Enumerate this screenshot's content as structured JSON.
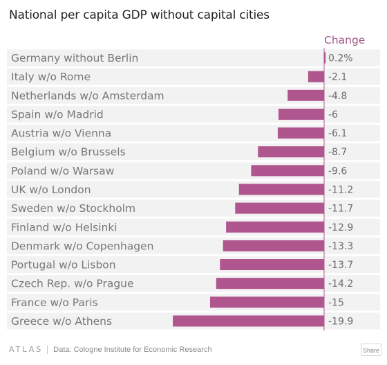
{
  "title": "National per capita GDP without capital cities",
  "footer": {
    "brand": "ATLAS",
    "source": "Data: Cologne Institute for Economic Research",
    "share_label": "Share"
  },
  "colors": {
    "bar": "#b0568f",
    "header": "#a3588a",
    "row_background": "#f2f2f2"
  },
  "chart_data": {
    "type": "bar",
    "orientation": "horizontal",
    "title": "National per capita GDP without capital cities",
    "value_header": "Change",
    "categories": [
      "Germany without Berlin",
      "Italy w/o Rome",
      "Netherlands w/o Amsterdam",
      "Spain w/o Madrid",
      "Austria w/o Vienna",
      "Belgium w/o Brussels",
      "Poland w/o Warsaw",
      "UK w/o London",
      "Sweden w/o Stockholm",
      "Finland w/o Helsinki",
      "Denmark w/o Copenhagen",
      "Portugal w/o Lisbon",
      "Czech Rep. w/o Prague",
      "France w/o Paris",
      "Greece w/o Athens"
    ],
    "values": [
      0.2,
      -2.1,
      -4.8,
      -6,
      -6.1,
      -8.7,
      -9.6,
      -11.2,
      -11.7,
      -12.9,
      -13.3,
      -13.7,
      -14.2,
      -15,
      -19.9
    ],
    "value_labels": [
      "0.2%",
      "-2.1",
      "-4.8",
      "-6",
      "-6.1",
      "-8.7",
      "-9.6",
      "-11.2",
      "-11.7",
      "-12.9",
      "-13.3",
      "-13.7",
      "-14.2",
      "-15",
      "-19.9"
    ],
    "xlim": [
      -20,
      0.2
    ],
    "grid": false,
    "legend": "none"
  }
}
